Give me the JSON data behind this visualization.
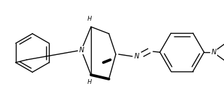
{
  "bg_color": "#ffffff",
  "line_color": "#000000",
  "lw": 1.0,
  "bold_lw": 2.8,
  "fs": 6.0,
  "figsize": [
    3.25,
    1.47
  ],
  "dpi": 100,
  "xlim": [
    -0.05,
    1.05
  ],
  "ylim": [
    0.05,
    0.95
  ]
}
